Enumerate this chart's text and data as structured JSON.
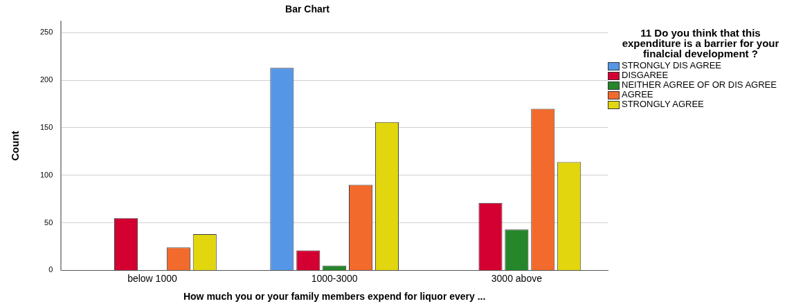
{
  "chart_data": {
    "type": "bar",
    "title": "Bar Chart",
    "xlabel": "How much you or your family members expend for liquor every ...",
    "ylabel": "Count",
    "legend_title": "11 Do you think that this expenditure is a barrier for your finalcial development ?",
    "categories": [
      "below 1000",
      "1000-3000",
      "3000 above"
    ],
    "series": [
      {
        "name": "STRONGLY DIS AGREE",
        "color": "#5596e6",
        "values": [
          null,
          213,
          null
        ]
      },
      {
        "name": "DISGAREE",
        "color": "#d50032",
        "values": [
          55,
          21,
          71
        ]
      },
      {
        "name": "NEITHER AGREE OF OR DIS AGREE",
        "color": "#25862a",
        "values": [
          null,
          5,
          43
        ]
      },
      {
        "name": "AGREE",
        "color": "#f26a2c",
        "values": [
          24,
          90,
          170
        ]
      },
      {
        "name": "STRONGLY AGREE",
        "color": "#e2d70f",
        "values": [
          38,
          156,
          114
        ]
      }
    ],
    "ylim": [
      0,
      262
    ],
    "yticks": [
      0,
      50,
      100,
      150,
      200,
      250
    ],
    "grid": "y",
    "legend": "top right"
  }
}
